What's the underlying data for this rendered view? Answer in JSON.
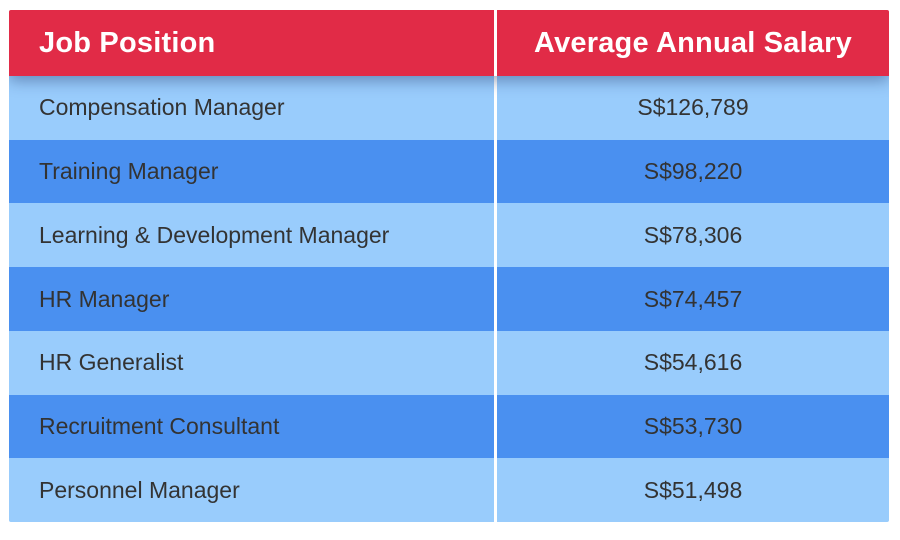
{
  "chart_data": {
    "type": "table",
    "columns": [
      "Job Position",
      "Average Annual Salary"
    ],
    "rows": [
      {
        "position": "Compensation Manager",
        "salary": "S$126,789",
        "salary_value": 126789
      },
      {
        "position": "Training Manager",
        "salary": "S$98,220",
        "salary_value": 98220
      },
      {
        "position": "Learning & Development Manager",
        "salary": "S$78,306",
        "salary_value": 78306
      },
      {
        "position": "HR Manager",
        "salary": "S$74,457",
        "salary_value": 74457
      },
      {
        "position": "HR Generalist",
        "salary": "S$54,616",
        "salary_value": 54616
      },
      {
        "position": "Recruitment Consultant",
        "salary": "S$53,730",
        "salary_value": 53730
      },
      {
        "position": "Personnel Manager",
        "salary": "S$51,498",
        "salary_value": 51498
      }
    ],
    "currency_prefix": "S$"
  },
  "colors": {
    "header_bg": "#E12B47",
    "header_text": "#FFFFFF",
    "row_light_bg": "#99CCFC",
    "row_dark_bg": "#4A90F0",
    "row_text": "#333333",
    "column_divider": "#FFFFFF",
    "page_bg": "#FFFFFF"
  }
}
